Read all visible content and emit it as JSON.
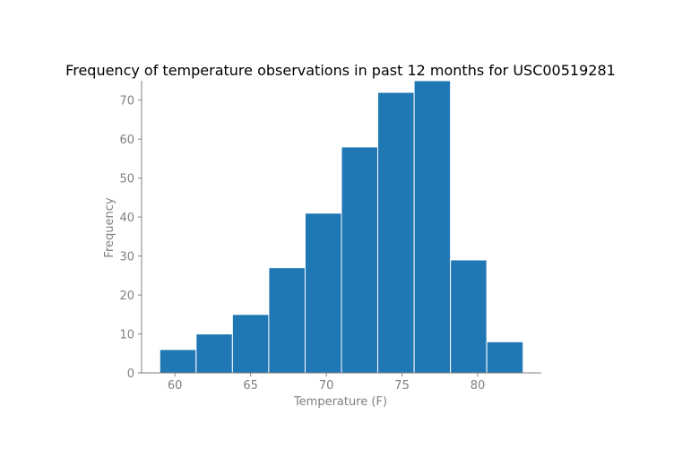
{
  "chart_data": {
    "type": "bar",
    "title": "Frequency of temperature observations in past 12 months for USC00519281",
    "xlabel": "Temperature (F)",
    "ylabel": "Frequency",
    "bin_edges": [
      59.0,
      61.4,
      63.8,
      66.2,
      68.6,
      71.0,
      73.4,
      75.8,
      78.2,
      80.6,
      83.0
    ],
    "values": [
      6,
      10,
      15,
      27,
      41,
      58,
      72,
      75,
      29,
      8
    ],
    "x_ticks": [
      60,
      65,
      70,
      75,
      80
    ],
    "y_ticks": [
      0,
      10,
      20,
      30,
      40,
      50,
      60,
      70
    ],
    "xlim": [
      57.8,
      84.2
    ],
    "ylim": [
      0,
      75
    ],
    "grid": false,
    "colors": {
      "bar": "#1f77b4",
      "bar_edge": "#ffffff",
      "axis": "#808080",
      "tick_label": "#808080",
      "title": "#000000"
    }
  }
}
